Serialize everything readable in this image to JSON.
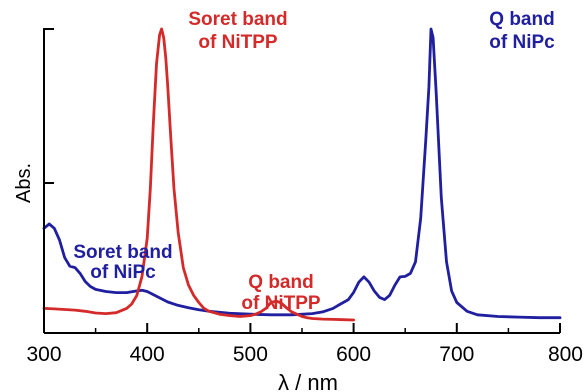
{
  "chart_data": {
    "type": "line",
    "xlabel": "λ / nm",
    "ylabel": "Abs.",
    "xlim": [
      300,
      800
    ],
    "ylim": [
      0,
      1.0
    ],
    "xticks": [
      300,
      400,
      500,
      600,
      700,
      800
    ],
    "grid": false,
    "legend": "none",
    "series": [
      {
        "name": "NiPc",
        "color": "#1f1fa0",
        "x": [
          300,
          305,
          310,
          315,
          320,
          325,
          330,
          335,
          340,
          345,
          350,
          360,
          370,
          380,
          390,
          395,
          400,
          410,
          420,
          430,
          440,
          450,
          460,
          480,
          500,
          520,
          540,
          560,
          570,
          580,
          585,
          590,
          595,
          600,
          605,
          610,
          615,
          620,
          625,
          630,
          635,
          640,
          645,
          650,
          655,
          660,
          665,
          670,
          673,
          675,
          677,
          680,
          685,
          690,
          695,
          700,
          710,
          720,
          740,
          760,
          780,
          800
        ],
        "y": [
          0.315,
          0.33,
          0.315,
          0.275,
          0.215,
          0.185,
          0.18,
          0.16,
          0.132,
          0.115,
          0.105,
          0.098,
          0.094,
          0.094,
          0.1,
          0.102,
          0.098,
          0.08,
          0.062,
          0.05,
          0.042,
          0.035,
          0.03,
          0.023,
          0.02,
          0.018,
          0.018,
          0.022,
          0.028,
          0.04,
          0.05,
          0.06,
          0.07,
          0.095,
          0.13,
          0.148,
          0.13,
          0.1,
          0.078,
          0.07,
          0.085,
          0.12,
          0.148,
          0.15,
          0.16,
          0.2,
          0.35,
          0.62,
          0.8,
          1.0,
          0.97,
          0.78,
          0.42,
          0.2,
          0.1,
          0.06,
          0.03,
          0.018,
          0.012,
          0.01,
          0.008,
          0.008
        ]
      },
      {
        "name": "NiTPP",
        "color": "#d42a2a",
        "x": [
          300,
          310,
          320,
          330,
          340,
          350,
          360,
          370,
          380,
          385,
          390,
          395,
          400,
          403,
          406,
          409,
          412,
          414,
          416,
          418,
          420,
          423,
          426,
          430,
          435,
          440,
          445,
          450,
          455,
          460,
          470,
          480,
          490,
          500,
          505,
          510,
          515,
          520,
          525,
          530,
          535,
          540,
          545,
          550,
          555,
          560,
          570,
          580,
          590,
          600
        ],
        "y": [
          0.04,
          0.038,
          0.036,
          0.034,
          0.03,
          0.024,
          0.022,
          0.025,
          0.04,
          0.055,
          0.085,
          0.15,
          0.28,
          0.45,
          0.68,
          0.88,
          0.98,
          1.0,
          0.97,
          0.9,
          0.8,
          0.62,
          0.45,
          0.3,
          0.18,
          0.12,
          0.085,
          0.06,
          0.04,
          0.03,
          0.02,
          0.015,
          0.012,
          0.015,
          0.02,
          0.028,
          0.04,
          0.06,
          0.065,
          0.058,
          0.042,
          0.028,
          0.02,
          0.012,
          0.008,
          0.005,
          0.003,
          0.002,
          0.001,
          0.0
        ]
      }
    ],
    "annotations": [
      {
        "line1": "Soret band",
        "line2": "of NiTPP",
        "color": "#d42a2a"
      },
      {
        "line1": "Q band",
        "line2": "of NiPc",
        "color": "#1f1fa0"
      },
      {
        "line1": "Soret band",
        "line2": "of NiPc",
        "color": "#1f1fa0"
      },
      {
        "line1": "Q band",
        "line2": "of NiTPP",
        "color": "#d42a2a"
      }
    ]
  }
}
